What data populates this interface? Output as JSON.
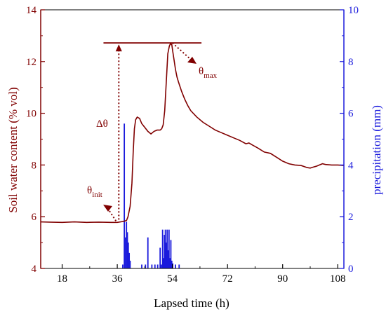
{
  "chart_data": {
    "type": "line",
    "xlabel": "Lapsed time (h)",
    "ylabel_left": "Soil water content (% vol)",
    "ylabel_right": "precipitation (mm)",
    "xlim": [
      11,
      110
    ],
    "x_ticks": [
      18,
      36,
      54,
      72,
      90,
      108
    ],
    "ylim_left": [
      4,
      14
    ],
    "y_ticks_left": [
      4,
      6,
      8,
      10,
      12,
      14
    ],
    "ylim_right": [
      0,
      10
    ],
    "y_ticks_right": [
      0,
      2,
      4,
      6,
      8,
      10
    ],
    "grid": false,
    "colors": {
      "left_axis": "#800000",
      "right_axis": "#1a1adc",
      "line": "#800000",
      "bars": "#1a1adc",
      "annotation": "#800000"
    },
    "series": [
      {
        "axis": "left",
        "x": [
          11,
          14,
          18,
          22,
          26,
          30,
          34,
          36,
          37,
          38,
          39,
          39.5,
          40.2,
          40.8,
          41.2,
          41.6,
          42.0,
          42.5,
          43.3,
          44,
          45,
          46,
          47,
          48,
          49,
          50,
          50.5,
          51,
          51.5,
          52,
          52.5,
          53.0,
          53.4,
          53.8,
          54.1,
          54.5,
          55,
          55.5,
          56,
          57,
          58,
          59,
          60,
          62,
          64,
          66,
          68,
          70,
          72,
          74,
          76,
          78,
          79,
          80,
          82,
          84,
          86,
          88,
          90,
          92,
          94,
          96,
          98,
          99,
          100,
          101,
          102,
          103,
          104,
          106,
          108,
          110
        ],
        "y": [
          5.8,
          5.79,
          5.78,
          5.8,
          5.78,
          5.79,
          5.78,
          5.78,
          5.8,
          5.82,
          5.85,
          6.0,
          6.4,
          7.3,
          8.5,
          9.4,
          9.75,
          9.85,
          9.8,
          9.6,
          9.45,
          9.3,
          9.2,
          9.3,
          9.35,
          9.35,
          9.4,
          9.55,
          10.1,
          11.2,
          12.3,
          12.6,
          12.7,
          12.65,
          12.4,
          12.1,
          11.7,
          11.4,
          11.2,
          10.85,
          10.55,
          10.3,
          10.1,
          9.85,
          9.65,
          9.5,
          9.35,
          9.25,
          9.15,
          9.05,
          8.95,
          8.82,
          8.85,
          8.78,
          8.65,
          8.5,
          8.45,
          8.3,
          8.15,
          8.05,
          8.0,
          7.98,
          7.9,
          7.88,
          7.92,
          7.95,
          8.0,
          8.05,
          8.02,
          8.0,
          8.0,
          7.98
        ]
      },
      {
        "axis": "right",
        "type": "bar",
        "x": [
          37.8,
          38.3,
          38.6,
          39.0,
          39.3,
          39.6,
          39.9,
          40.2,
          44.0,
          45.2,
          46.0,
          47.3,
          48.3,
          49.2,
          50.0,
          50.4,
          50.8,
          51.1,
          51.4,
          51.7,
          52.0,
          52.3,
          52.6,
          52.9,
          53.2,
          53.5,
          53.8,
          54.1,
          55.0,
          56.2
        ],
        "values": [
          0.15,
          5.6,
          1.2,
          1.8,
          1.4,
          1.0,
          0.6,
          0.3,
          0.15,
          0.15,
          1.2,
          0.15,
          0.15,
          0.15,
          0.8,
          0.15,
          1.5,
          0.4,
          1.3,
          1.5,
          1.0,
          1.5,
          0.7,
          1.5,
          0.4,
          1.1,
          0.3,
          0.2,
          0.15,
          0.15
        ]
      }
    ],
    "annotations": {
      "delta": "Δθ",
      "theta_max": {
        "base": "θ",
        "sub": "max"
      },
      "theta_init": {
        "base": "θ",
        "sub": "init"
      }
    }
  }
}
